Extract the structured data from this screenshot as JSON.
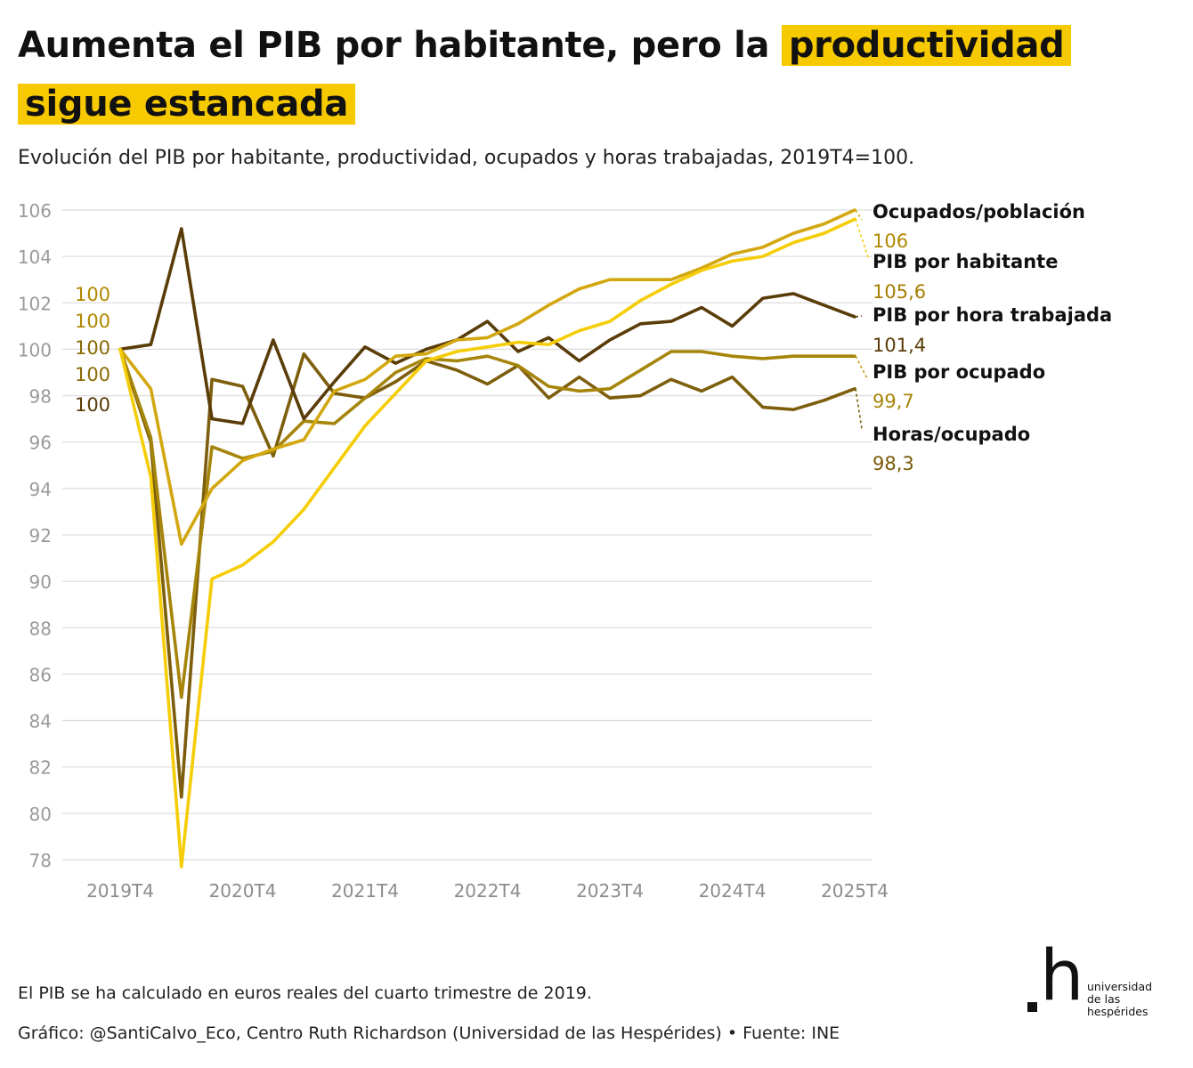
{
  "header": {
    "title_plain": "Aumenta el PIB por habitante, pero la",
    "title_highlight": "productividad sigue estancada",
    "subtitle": "Evolución del PIB por habitante, productividad, ocupados y horas trabajadas, 2019T4=100."
  },
  "chart_data": {
    "type": "line",
    "title": "Aumenta el PIB por habitante, pero la productividad sigue estancada",
    "subtitle": "Evolución del PIB por habitante, productividad, ocupados y horas trabajadas, 2019T4=100.",
    "xlabel": "",
    "ylabel": "",
    "x": [
      "2019T4",
      "2020T1",
      "2020T2",
      "2020T3",
      "2020T4",
      "2021T1",
      "2021T2",
      "2021T3",
      "2021T4",
      "2022T1",
      "2022T2",
      "2022T3",
      "2022T4",
      "2023T1",
      "2023T2",
      "2023T3",
      "2023T4",
      "2024T1",
      "2024T2",
      "2024T3",
      "2024T4",
      "2025T1",
      "2025T2",
      "2025T3",
      "2025T4"
    ],
    "x_tick_labels": [
      "2019T4",
      "2020T4",
      "2021T4",
      "2022T4",
      "2023T4",
      "2024T4",
      "2025T4"
    ],
    "x_tick_index": [
      0,
      4,
      8,
      12,
      16,
      20,
      24
    ],
    "ylim": [
      78,
      106
    ],
    "yticks": [
      106,
      104,
      102,
      100,
      98,
      96,
      94,
      92,
      90,
      88,
      86,
      84,
      82,
      80,
      78
    ],
    "grid": true,
    "start_labels": [
      "100",
      "100",
      "100",
      "100",
      "100"
    ],
    "series": [
      {
        "name": "Ocupados/población",
        "end_label": "106",
        "color": "#d2a710",
        "label_color": "#b08800",
        "leader_color": "#d2a710",
        "values": [
          100,
          98.3,
          91.6,
          94.0,
          95.2,
          95.7,
          96.1,
          98.2,
          98.7,
          99.7,
          99.8,
          100.4,
          100.5,
          101.1,
          101.9,
          102.6,
          103.0,
          103.0,
          103.0,
          103.5,
          104.1,
          104.4,
          105.0,
          105.4,
          106.0
        ]
      },
      {
        "name": "PIB por habitante",
        "end_label": "105,6",
        "color": "#f5cd07",
        "label_color": "#a57f00",
        "leader_color": "#f5cd07",
        "values": [
          100,
          94.5,
          77.7,
          90.1,
          90.7,
          91.7,
          93.1,
          94.9,
          96.7,
          98.1,
          99.5,
          99.9,
          100.1,
          100.3,
          100.2,
          100.8,
          101.2,
          102.1,
          102.8,
          103.4,
          103.8,
          104.0,
          104.6,
          105.0,
          105.6
        ]
      },
      {
        "name": "PIB por hora trabajada",
        "end_label": "101,4",
        "color": "#5a3c08",
        "label_color": "#5a3c08",
        "leader_color": "#5a3c08",
        "values": [
          100,
          100.2,
          105.2,
          97.0,
          96.8,
          100.4,
          97.0,
          98.6,
          100.1,
          99.4,
          100.0,
          100.4,
          101.2,
          99.9,
          100.5,
          99.5,
          100.4,
          101.1,
          101.2,
          101.8,
          101.0,
          102.2,
          102.4,
          101.9,
          101.4
        ]
      },
      {
        "name": "PIB por ocupado",
        "end_label": "99,7",
        "color": "#a6850b",
        "label_color": "#a6850b",
        "leader_color": "#c29c0d",
        "values": [
          100,
          96.2,
          85.0,
          95.8,
          95.3,
          95.6,
          96.9,
          96.8,
          97.9,
          99.0,
          99.6,
          99.5,
          99.7,
          99.3,
          98.4,
          98.2,
          98.3,
          99.1,
          99.9,
          99.9,
          99.7,
          99.6,
          99.7,
          99.7,
          99.7
        ]
      },
      {
        "name": "Horas/ocupado",
        "end_label": "98,3",
        "color": "#7d5e0c",
        "label_color": "#7a5a08",
        "leader_color": "#7d5e0c",
        "values": [
          100,
          96.0,
          80.7,
          98.7,
          98.4,
          95.4,
          99.8,
          98.1,
          97.9,
          98.6,
          99.5,
          99.1,
          98.5,
          99.3,
          97.9,
          98.8,
          97.9,
          98.0,
          98.7,
          98.2,
          98.8,
          97.5,
          97.4,
          97.8,
          98.3
        ]
      }
    ]
  },
  "footer": {
    "note": "El PIB se ha calculado en euros reales del cuarto trimestre de 2019.",
    "credit": "Gráfico: @SantiCalvo_Eco, Centro Ruth Richardson (Universidad de las Hespérides) • Fuente: INE"
  },
  "logo": {
    "mark": "h",
    "line1": "universidad",
    "line2": "de las",
    "line3": "hespérides"
  }
}
